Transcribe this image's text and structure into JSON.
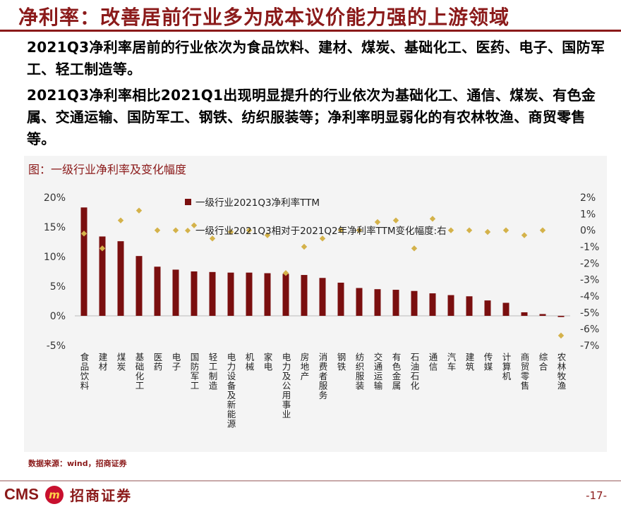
{
  "header": {
    "title": "净利率：改善居前行业多为成本议价能力强的上游领域"
  },
  "paragraphs": [
    "2021Q3净利率居前的行业依次为食品饮料、建材、煤炭、基础化工、医药、电子、国防军工、轻工制造等。",
    "2021Q3净利率相比2021Q1出现明显提升的行业依次为基础化工、通信、煤炭、有色金属、交通运输、国防军工、钢铁、纺织服装等；净利率明显弱化的有农林牧渔、商贸零售等。"
  ],
  "chart_label": "图：一级行业净利率及变化幅度",
  "source": "数据来源：wind，招商证券",
  "footer": {
    "logo_cms": "CMS",
    "logo_text": "招商证券",
    "page": "-17-"
  },
  "colors": {
    "brand": "#8b1a1a",
    "bar": "#7a0f0f",
    "marker": "#d4b24a"
  },
  "chart_data": {
    "type": "bar",
    "categories": [
      "食品饮料",
      "建材",
      "煤炭",
      "基础化工",
      "医药",
      "电子",
      "国防军工",
      "轻工制造",
      "电力设备及新能源",
      "机械",
      "家电",
      "电力及公用事业",
      "房地产",
      "消费者服务",
      "钢铁",
      "纺织服装",
      "交通运输",
      "有色金属",
      "石油石化",
      "通信",
      "汽车",
      "建筑",
      "传媒",
      "计算机",
      "商贸零售",
      "综合",
      "农林牧渔"
    ],
    "series": [
      {
        "name": "一级行业2021Q3净利率TTM",
        "type": "bar",
        "axis": "left",
        "values": [
          18.3,
          13.4,
          12.6,
          10.1,
          8.3,
          7.8,
          7.5,
          7.4,
          7.3,
          7.3,
          7.2,
          7.1,
          6.9,
          6.4,
          5.6,
          4.7,
          4.5,
          4.4,
          4.2,
          3.8,
          3.5,
          3.3,
          2.6,
          2.2,
          0.6,
          0.3,
          -0.2
        ]
      },
      {
        "name": "一级行业2021Q3相对于2021Q2年净利率TTM变化幅度:右",
        "type": "scatter",
        "axis": "right",
        "values": [
          -0.2,
          -1.1,
          0.6,
          1.2,
          0.0,
          0.0,
          0.3,
          -0.5,
          -0.1,
          0.0,
          -0.3,
          -2.6,
          -1.0,
          -0.5,
          0.0,
          0.0,
          0.5,
          0.6,
          -1.1,
          0.7,
          0.0,
          0.0,
          -0.1,
          0.0,
          -0.3,
          0.0,
          -6.4
        ]
      }
    ],
    "ylim_left": [
      -5,
      20
    ],
    "yticks_left": [
      "20%",
      "15%",
      "10%",
      "5%",
      "0%",
      "-5%"
    ],
    "ylim_right": [
      -7,
      2
    ],
    "yticks_right": [
      "2%",
      "1%",
      "0%",
      "-1%",
      "-2%",
      "-3%",
      "-4%",
      "-5%",
      "-6%",
      "-7%"
    ],
    "grid": false,
    "legend_position": "top-center"
  }
}
